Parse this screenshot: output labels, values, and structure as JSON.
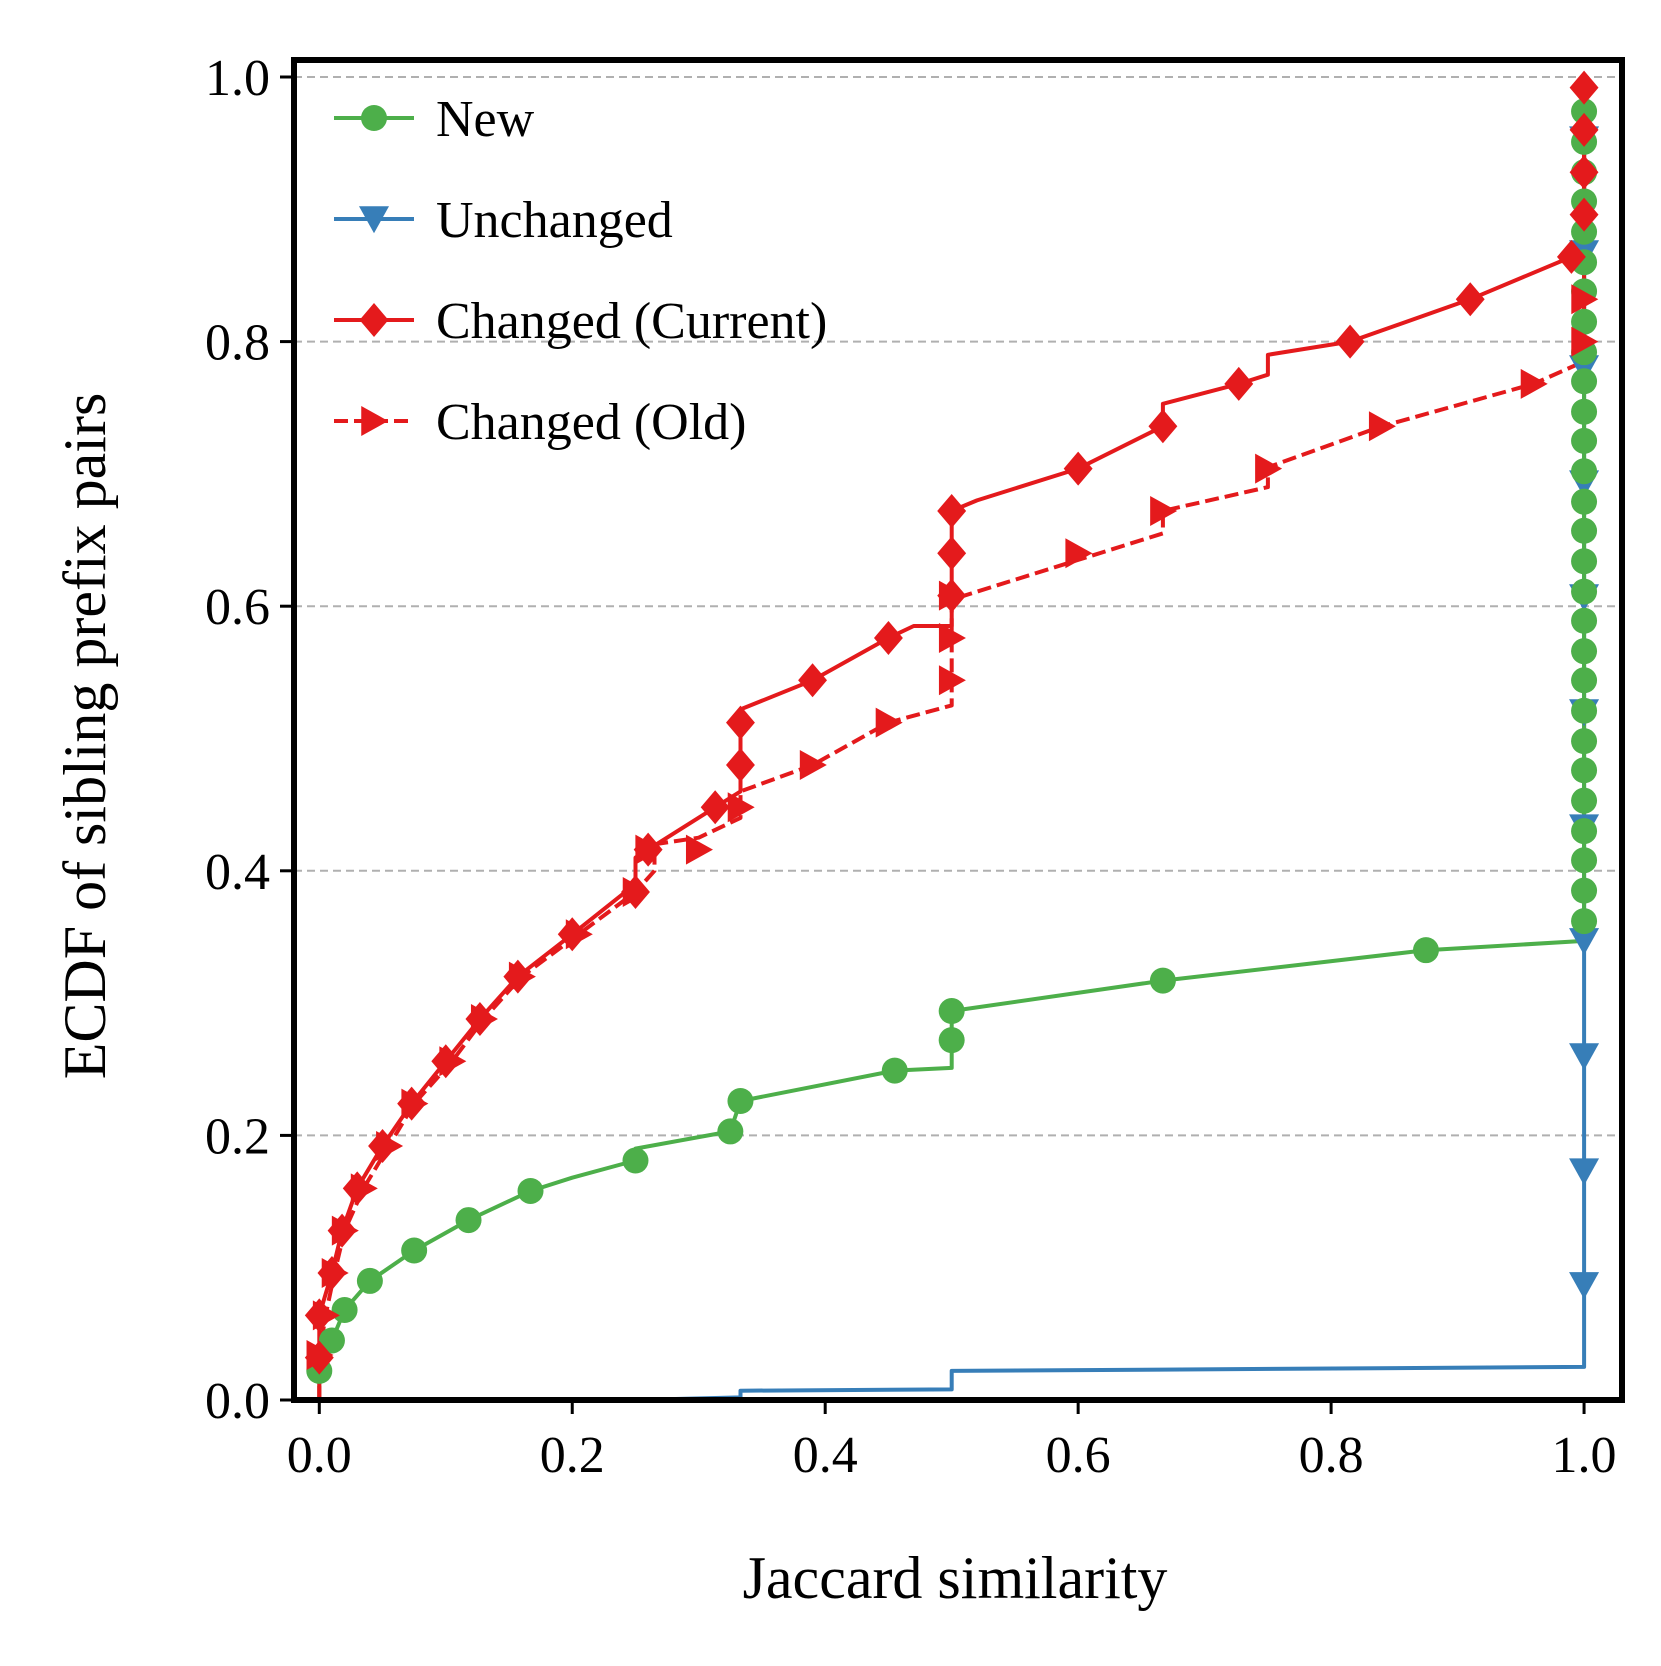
{
  "chart_data": {
    "type": "line",
    "title": "",
    "xlabel": "Jaccard similarity",
    "ylabel": "ECDF of sibling prefix pairs",
    "xlim": [
      -0.02,
      1.03
    ],
    "ylim": [
      0.0,
      1.0
    ],
    "xticks": [
      "0.0",
      "0.2",
      "0.4",
      "0.6",
      "0.8",
      "1.0"
    ],
    "yticks": [
      "0.0",
      "0.2",
      "0.4",
      "0.6",
      "0.8",
      "1.0"
    ],
    "grid": "horizontal dashed",
    "legend_position": "top-left",
    "step_curves": true,
    "series": [
      {
        "name": "New",
        "color": "#4daf4a",
        "marker": "circle",
        "linestyle": "solid",
        "x": [
          0.0,
          0.01,
          0.02,
          0.04,
          0.07,
          0.12,
          0.17,
          0.25,
          0.32,
          0.333,
          0.46,
          0.5,
          0.5,
          0.667,
          0.875,
          1.0
        ],
        "y": [
          0.02,
          0.045,
          0.068,
          0.09,
          0.113,
          0.136,
          0.158,
          0.181,
          0.203,
          0.226,
          0.249,
          0.272,
          0.294,
          0.317,
          0.34,
          1.0
        ],
        "points": [
          [
            0.0,
            0.022
          ],
          [
            0.01,
            0.045
          ],
          [
            0.02,
            0.068
          ],
          [
            0.04,
            0.09
          ],
          [
            0.075,
            0.113
          ],
          [
            0.118,
            0.136
          ],
          [
            0.167,
            0.158
          ],
          [
            0.25,
            0.181
          ],
          [
            0.325,
            0.203
          ],
          [
            0.333,
            0.226
          ],
          [
            0.455,
            0.249
          ],
          [
            0.5,
            0.272
          ],
          [
            0.5,
            0.294
          ],
          [
            0.667,
            0.317
          ],
          [
            0.875,
            0.34
          ],
          [
            1.0,
            0.362
          ],
          [
            1.0,
            0.385
          ],
          [
            1.0,
            0.408
          ],
          [
            1.0,
            0.43
          ],
          [
            1.0,
            0.453
          ],
          [
            1.0,
            0.476
          ],
          [
            1.0,
            0.498
          ],
          [
            1.0,
            0.521
          ],
          [
            1.0,
            0.544
          ],
          [
            1.0,
            0.566
          ],
          [
            1.0,
            0.589
          ],
          [
            1.0,
            0.611
          ],
          [
            1.0,
            0.634
          ],
          [
            1.0,
            0.657
          ],
          [
            1.0,
            0.679
          ],
          [
            1.0,
            0.702
          ],
          [
            1.0,
            0.725
          ],
          [
            1.0,
            0.747
          ],
          [
            1.0,
            0.77
          ],
          [
            1.0,
            0.792
          ],
          [
            1.0,
            0.815
          ],
          [
            1.0,
            0.838
          ],
          [
            1.0,
            0.86
          ],
          [
            1.0,
            0.883
          ],
          [
            1.0,
            0.906
          ],
          [
            1.0,
            0.928
          ],
          [
            1.0,
            0.951
          ],
          [
            1.0,
            0.974
          ]
        ],
        "line": [
          [
            0.0,
            0.0
          ],
          [
            0.0,
            0.022
          ],
          [
            0.01,
            0.045
          ],
          [
            0.02,
            0.068
          ],
          [
            0.04,
            0.09
          ],
          [
            0.075,
            0.113
          ],
          [
            0.118,
            0.136
          ],
          [
            0.167,
            0.158
          ],
          [
            0.2,
            0.168
          ],
          [
            0.25,
            0.181
          ],
          [
            0.25,
            0.19
          ],
          [
            0.325,
            0.203
          ],
          [
            0.333,
            0.226
          ],
          [
            0.455,
            0.249
          ],
          [
            0.5,
            0.251
          ],
          [
            0.5,
            0.294
          ],
          [
            0.667,
            0.317
          ],
          [
            0.875,
            0.34
          ],
          [
            1.0,
            0.347
          ],
          [
            1.0,
            1.0
          ]
        ]
      },
      {
        "name": "Unchanged",
        "color": "#377eb8",
        "marker": "triangle-down",
        "linestyle": "solid",
        "points": [
          [
            1.0,
            0.087
          ],
          [
            1.0,
            0.173
          ],
          [
            1.0,
            0.26
          ],
          [
            1.0,
            0.347
          ],
          [
            1.0,
            0.433
          ],
          [
            1.0,
            0.52
          ],
          [
            1.0,
            0.607
          ],
          [
            1.0,
            0.693
          ],
          [
            1.0,
            0.78
          ],
          [
            1.0,
            0.867
          ],
          [
            1.0,
            0.953
          ]
        ],
        "line": [
          [
            0.0,
            0.0
          ],
          [
            0.25,
            0.0
          ],
          [
            0.333,
            0.002
          ],
          [
            0.333,
            0.007
          ],
          [
            0.5,
            0.008
          ],
          [
            0.5,
            0.022
          ],
          [
            0.667,
            0.023
          ],
          [
            1.0,
            0.025
          ],
          [
            1.0,
            1.0
          ]
        ]
      },
      {
        "name": "Changed (Current)",
        "color": "#e41a1c",
        "marker": "diamond",
        "linestyle": "solid",
        "points": [
          [
            0.0,
            0.032
          ],
          [
            0.0,
            0.064
          ],
          [
            0.01,
            0.096
          ],
          [
            0.018,
            0.128
          ],
          [
            0.03,
            0.16
          ],
          [
            0.05,
            0.192
          ],
          [
            0.073,
            0.224
          ],
          [
            0.1,
            0.256
          ],
          [
            0.127,
            0.288
          ],
          [
            0.157,
            0.32
          ],
          [
            0.2,
            0.352
          ],
          [
            0.25,
            0.384
          ],
          [
            0.26,
            0.416
          ],
          [
            0.313,
            0.448
          ],
          [
            0.333,
            0.48
          ],
          [
            0.333,
            0.512
          ],
          [
            0.39,
            0.544
          ],
          [
            0.45,
            0.576
          ],
          [
            0.5,
            0.608
          ],
          [
            0.5,
            0.64
          ],
          [
            0.5,
            0.672
          ],
          [
            0.6,
            0.704
          ],
          [
            0.667,
            0.736
          ],
          [
            0.727,
            0.768
          ],
          [
            0.815,
            0.8
          ],
          [
            0.91,
            0.832
          ],
          [
            0.99,
            0.864
          ],
          [
            1.0,
            0.896
          ],
          [
            1.0,
            0.928
          ],
          [
            1.0,
            0.96
          ],
          [
            1.0,
            0.992
          ]
        ],
        "line": [
          [
            0.0,
            0.0
          ],
          [
            0.0,
            0.064
          ],
          [
            0.01,
            0.096
          ],
          [
            0.018,
            0.128
          ],
          [
            0.03,
            0.16
          ],
          [
            0.05,
            0.192
          ],
          [
            0.073,
            0.224
          ],
          [
            0.1,
            0.256
          ],
          [
            0.127,
            0.288
          ],
          [
            0.157,
            0.32
          ],
          [
            0.2,
            0.352
          ],
          [
            0.25,
            0.39
          ],
          [
            0.25,
            0.41
          ],
          [
            0.26,
            0.416
          ],
          [
            0.313,
            0.448
          ],
          [
            0.333,
            0.46
          ],
          [
            0.333,
            0.522
          ],
          [
            0.39,
            0.544
          ],
          [
            0.45,
            0.576
          ],
          [
            0.47,
            0.585
          ],
          [
            0.5,
            0.585
          ],
          [
            0.5,
            0.672
          ],
          [
            0.52,
            0.68
          ],
          [
            0.6,
            0.704
          ],
          [
            0.667,
            0.736
          ],
          [
            0.667,
            0.753
          ],
          [
            0.727,
            0.768
          ],
          [
            0.75,
            0.775
          ],
          [
            0.75,
            0.79
          ],
          [
            0.815,
            0.8
          ],
          [
            0.91,
            0.832
          ],
          [
            0.99,
            0.864
          ],
          [
            1.0,
            0.86
          ],
          [
            1.0,
            1.0
          ]
        ]
      },
      {
        "name": "Changed (Old)",
        "color": "#e41a1c",
        "marker": "triangle-right",
        "linestyle": "dashed",
        "points": [
          [
            0.0,
            0.034
          ],
          [
            0.005,
            0.064
          ],
          [
            0.012,
            0.096
          ],
          [
            0.02,
            0.128
          ],
          [
            0.035,
            0.16
          ],
          [
            0.055,
            0.192
          ],
          [
            0.075,
            0.224
          ],
          [
            0.105,
            0.256
          ],
          [
            0.13,
            0.288
          ],
          [
            0.16,
            0.32
          ],
          [
            0.205,
            0.352
          ],
          [
            0.25,
            0.384
          ],
          [
            0.26,
            0.416
          ],
          [
            0.3,
            0.416
          ],
          [
            0.333,
            0.448
          ],
          [
            0.39,
            0.48
          ],
          [
            0.45,
            0.512
          ],
          [
            0.5,
            0.544
          ],
          [
            0.5,
            0.576
          ],
          [
            0.5,
            0.608
          ],
          [
            0.6,
            0.64
          ],
          [
            0.667,
            0.672
          ],
          [
            0.75,
            0.704
          ],
          [
            0.84,
            0.736
          ],
          [
            0.96,
            0.768
          ],
          [
            1.0,
            0.8
          ],
          [
            1.0,
            0.832
          ]
        ],
        "line": [
          [
            0.0,
            0.0
          ],
          [
            0.0,
            0.034
          ],
          [
            0.005,
            0.064
          ],
          [
            0.012,
            0.096
          ],
          [
            0.02,
            0.128
          ],
          [
            0.035,
            0.16
          ],
          [
            0.055,
            0.192
          ],
          [
            0.075,
            0.224
          ],
          [
            0.105,
            0.256
          ],
          [
            0.13,
            0.288
          ],
          [
            0.16,
            0.32
          ],
          [
            0.205,
            0.352
          ],
          [
            0.25,
            0.384
          ],
          [
            0.265,
            0.4
          ],
          [
            0.265,
            0.42
          ],
          [
            0.3,
            0.425
          ],
          [
            0.333,
            0.44
          ],
          [
            0.333,
            0.46
          ],
          [
            0.39,
            0.48
          ],
          [
            0.45,
            0.512
          ],
          [
            0.5,
            0.525
          ],
          [
            0.5,
            0.605
          ],
          [
            0.6,
            0.635
          ],
          [
            0.667,
            0.655
          ],
          [
            0.667,
            0.672
          ],
          [
            0.75,
            0.69
          ],
          [
            0.75,
            0.705
          ],
          [
            0.84,
            0.736
          ],
          [
            0.96,
            0.768
          ],
          [
            1.0,
            0.785
          ],
          [
            1.0,
            1.0
          ]
        ]
      }
    ]
  }
}
